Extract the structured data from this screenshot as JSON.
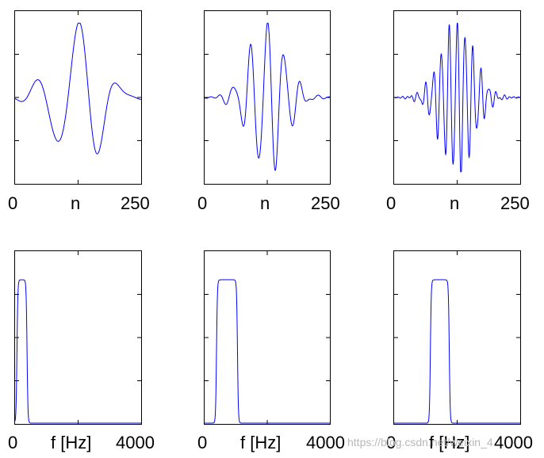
{
  "chart_data": [
    {
      "type": "line",
      "series_color": "#0000ff",
      "xticks": [
        "0",
        "n",
        "250"
      ],
      "x_range": [
        0,
        250
      ],
      "signal": "wavelet",
      "band_hz": [
        0,
        300
      ],
      "cycles": 3.0,
      "envelope_width": 0.18,
      "y_range": [
        -1.0,
        1.0
      ]
    },
    {
      "type": "line",
      "series_color": "#0000ff",
      "xticks": [
        "0",
        "n",
        "250"
      ],
      "x_range": [
        0,
        250
      ],
      "signal": "wavelet",
      "band_hz": [
        1000,
        1250
      ],
      "cycles": 7.5,
      "envelope_width": 0.14,
      "y_range": [
        -1.0,
        1.0
      ]
    },
    {
      "type": "line",
      "series_color": "#0000ff",
      "xticks": [
        "0",
        "n",
        "250"
      ],
      "x_range": [
        0,
        250
      ],
      "signal": "wavelet",
      "band_hz": [
        1800,
        2400
      ],
      "cycles": 16.0,
      "envelope_width": 0.13,
      "y_range": [
        -1.0,
        1.0
      ]
    },
    {
      "type": "line",
      "series_color": "#0000ff",
      "xticks": [
        "0",
        "f [Hz]",
        "4000"
      ],
      "x_range": [
        0,
        4000
      ],
      "signal": "band",
      "band_hz": [
        60,
        380
      ],
      "y_range": [
        0,
        1.0
      ]
    },
    {
      "type": "line",
      "series_color": "#0000ff",
      "xticks": [
        "0",
        "f [Hz]",
        "4000"
      ],
      "x_range": [
        0,
        4000
      ],
      "signal": "band",
      "band_hz": [
        380,
        1050
      ],
      "y_range": [
        0,
        1.0
      ]
    },
    {
      "type": "line",
      "series_color": "#0000ff",
      "xticks": [
        "0",
        "f [Hz]",
        "4000"
      ],
      "x_range": [
        0,
        4000
      ],
      "signal": "band",
      "band_hz": [
        1150,
        1750
      ],
      "y_range": [
        0,
        1.0
      ]
    }
  ],
  "watermark": "https://blog.csdn.net/weixin_4"
}
